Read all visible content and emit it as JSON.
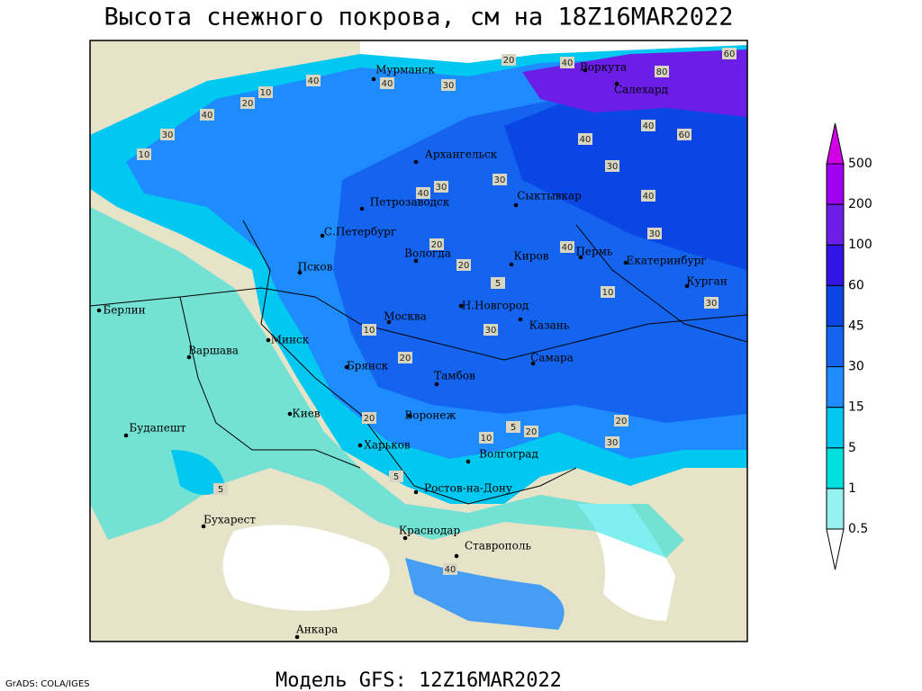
{
  "title": "Высота снежного покрова, см на 18Z16MAR2022",
  "caption": "Модель GFS: 12Z16MAR2022",
  "credit": "GrADS: COLA/IGES",
  "colorbar": {
    "levels": [
      0.5,
      1,
      5,
      15,
      30,
      45,
      60,
      100,
      200,
      500
    ],
    "colors": [
      "#ffffff",
      "#96f0f0",
      "#00e0e0",
      "#00c8f0",
      "#1e8cff",
      "#1464f0",
      "#0a46e6",
      "#3214e6",
      "#6a1ee6",
      "#a000f0",
      "#d200e6"
    ]
  },
  "cities": [
    "Мурманск",
    "Воркута",
    "Салехард",
    "Архангельск",
    "Сыктывкар",
    "Петрозаводск",
    "С.Петербург",
    "Вологда",
    "Киров",
    "Пермь",
    "Екатеринбург",
    "Курган",
    "Псков",
    "Берлин",
    "Москва",
    "Н.Новгород",
    "Казань",
    "Варшава",
    "Минск",
    "Самара",
    "Брянск",
    "Тамбов",
    "Воронеж",
    "Киев",
    "Харьков",
    "Волгоград",
    "Будапешт",
    "Ростов-на-Дону",
    "Бухарест",
    "Краснодар",
    "Ставрополь",
    "Анкара"
  ],
  "contour_labels": [
    20,
    40,
    80,
    60,
    40,
    20,
    30,
    40,
    10,
    40,
    30,
    40,
    60,
    40,
    30,
    10,
    30,
    40,
    30,
    40,
    30,
    20,
    40,
    5,
    20,
    10,
    30,
    30,
    20,
    10,
    20,
    5,
    10,
    30,
    20,
    5,
    5,
    40,
    20
  ]
}
